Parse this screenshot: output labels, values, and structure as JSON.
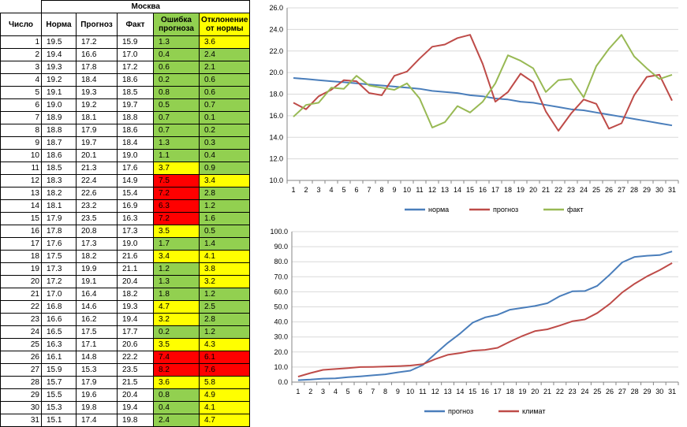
{
  "table": {
    "city": "Москва",
    "headers": {
      "day": "Число",
      "norm": "Норма",
      "forecast": "Прогноз",
      "fact": "Факт",
      "error": "Ошибка прогноза",
      "deviation": "Отклонение от нормы"
    },
    "colors": {
      "green": "#92d050",
      "yellow": "#ffff00",
      "red": "#ff0000"
    },
    "rows": [
      {
        "day": "1",
        "norm": "19.5",
        "forecast": "17.2",
        "fact": "15.9",
        "error": "1.3",
        "error_level": "green",
        "dev": "3.6",
        "dev_level": "yellow"
      },
      {
        "day": "2",
        "norm": "19.4",
        "forecast": "16.6",
        "fact": "17.0",
        "error": "0.4",
        "error_level": "green",
        "dev": "2.4",
        "dev_level": "green"
      },
      {
        "day": "3",
        "norm": "19.3",
        "forecast": "17.8",
        "fact": "17.2",
        "error": "0.6",
        "error_level": "green",
        "dev": "2.1",
        "dev_level": "green"
      },
      {
        "day": "4",
        "norm": "19.2",
        "forecast": "18.4",
        "fact": "18.6",
        "error": "0.2",
        "error_level": "green",
        "dev": "0.6",
        "dev_level": "green"
      },
      {
        "day": "5",
        "norm": "19.1",
        "forecast": "19.3",
        "fact": "18.5",
        "error": "0.8",
        "error_level": "green",
        "dev": "0.6",
        "dev_level": "green"
      },
      {
        "day": "6",
        "norm": "19.0",
        "forecast": "19.2",
        "fact": "19.7",
        "error": "0.5",
        "error_level": "green",
        "dev": "0.7",
        "dev_level": "green"
      },
      {
        "day": "7",
        "norm": "18.9",
        "forecast": "18.1",
        "fact": "18.8",
        "error": "0.7",
        "error_level": "green",
        "dev": "0.1",
        "dev_level": "green"
      },
      {
        "day": "8",
        "norm": "18.8",
        "forecast": "17.9",
        "fact": "18.6",
        "error": "0.7",
        "error_level": "green",
        "dev": "0.2",
        "dev_level": "green"
      },
      {
        "day": "9",
        "norm": "18.7",
        "forecast": "19.7",
        "fact": "18.4",
        "error": "1.3",
        "error_level": "green",
        "dev": "0.3",
        "dev_level": "green"
      },
      {
        "day": "10",
        "norm": "18.6",
        "forecast": "20.1",
        "fact": "19.0",
        "error": "1.1",
        "error_level": "green",
        "dev": "0.4",
        "dev_level": "green"
      },
      {
        "day": "11",
        "norm": "18.5",
        "forecast": "21.3",
        "fact": "17.6",
        "error": "3.7",
        "error_level": "yellow",
        "dev": "0.9",
        "dev_level": "green"
      },
      {
        "day": "12",
        "norm": "18.3",
        "forecast": "22.4",
        "fact": "14.9",
        "error": "7.5",
        "error_level": "red",
        "dev": "3.4",
        "dev_level": "yellow"
      },
      {
        "day": "13",
        "norm": "18.2",
        "forecast": "22.6",
        "fact": "15.4",
        "error": "7.2",
        "error_level": "red",
        "dev": "2.8",
        "dev_level": "green"
      },
      {
        "day": "14",
        "norm": "18.1",
        "forecast": "23.2",
        "fact": "16.9",
        "error": "6.3",
        "error_level": "red",
        "dev": "1.2",
        "dev_level": "green"
      },
      {
        "day": "15",
        "norm": "17.9",
        "forecast": "23.5",
        "fact": "16.3",
        "error": "7.2",
        "error_level": "red",
        "dev": "1.6",
        "dev_level": "green"
      },
      {
        "day": "16",
        "norm": "17.8",
        "forecast": "20.8",
        "fact": "17.3",
        "error": "3.5",
        "error_level": "yellow",
        "dev": "0.5",
        "dev_level": "green"
      },
      {
        "day": "17",
        "norm": "17.6",
        "forecast": "17.3",
        "fact": "19.0",
        "error": "1.7",
        "error_level": "green",
        "dev": "1.4",
        "dev_level": "green"
      },
      {
        "day": "18",
        "norm": "17.5",
        "forecast": "18.2",
        "fact": "21.6",
        "error": "3.4",
        "error_level": "yellow",
        "dev": "4.1",
        "dev_level": "yellow"
      },
      {
        "day": "19",
        "norm": "17.3",
        "forecast": "19.9",
        "fact": "21.1",
        "error": "1.2",
        "error_level": "green",
        "dev": "3.8",
        "dev_level": "yellow"
      },
      {
        "day": "20",
        "norm": "17.2",
        "forecast": "19.1",
        "fact": "20.4",
        "error": "1.3",
        "error_level": "green",
        "dev": "3.2",
        "dev_level": "yellow"
      },
      {
        "day": "21",
        "norm": "17.0",
        "forecast": "16.4",
        "fact": "18.2",
        "error": "1.8",
        "error_level": "green",
        "dev": "1.2",
        "dev_level": "green"
      },
      {
        "day": "22",
        "norm": "16.8",
        "forecast": "14.6",
        "fact": "19.3",
        "error": "4.7",
        "error_level": "yellow",
        "dev": "2.5",
        "dev_level": "green"
      },
      {
        "day": "23",
        "norm": "16.6",
        "forecast": "16.2",
        "fact": "19.4",
        "error": "3.2",
        "error_level": "yellow",
        "dev": "2.8",
        "dev_level": "green"
      },
      {
        "day": "24",
        "norm": "16.5",
        "forecast": "17.5",
        "fact": "17.7",
        "error": "0.2",
        "error_level": "green",
        "dev": "1.2",
        "dev_level": "green"
      },
      {
        "day": "25",
        "norm": "16.3",
        "forecast": "17.1",
        "fact": "20.6",
        "error": "3.5",
        "error_level": "yellow",
        "dev": "4.3",
        "dev_level": "yellow"
      },
      {
        "day": "26",
        "norm": "16.1",
        "forecast": "14.8",
        "fact": "22.2",
        "error": "7.4",
        "error_level": "red",
        "dev": "6.1",
        "dev_level": "red"
      },
      {
        "day": "27",
        "norm": "15.9",
        "forecast": "15.3",
        "fact": "23.5",
        "error": "8.2",
        "error_level": "red",
        "dev": "7.6",
        "dev_level": "red"
      },
      {
        "day": "28",
        "norm": "15.7",
        "forecast": "17.9",
        "fact": "21.5",
        "error": "3.6",
        "error_level": "yellow",
        "dev": "5.8",
        "dev_level": "yellow"
      },
      {
        "day": "29",
        "norm": "15.5",
        "forecast": "19.6",
        "fact": "20.4",
        "error": "0.8",
        "error_level": "green",
        "dev": "4.9",
        "dev_level": "yellow"
      },
      {
        "day": "30",
        "norm": "15.3",
        "forecast": "19.8",
        "fact": "19.4",
        "error": "0.4",
        "error_level": "green",
        "dev": "4.1",
        "dev_level": "yellow"
      },
      {
        "day": "31",
        "norm": "15.1",
        "forecast": "17.4",
        "fact": "19.8",
        "error": "2.4",
        "error_level": "green",
        "dev": "4.7",
        "dev_level": "yellow"
      }
    ]
  },
  "chart_data": [
    {
      "type": "line",
      "title": "",
      "xlabel": "",
      "ylabel": "",
      "x": [
        1,
        2,
        3,
        4,
        5,
        6,
        7,
        8,
        9,
        10,
        11,
        12,
        13,
        14,
        15,
        16,
        17,
        18,
        19,
        20,
        21,
        22,
        23,
        24,
        25,
        26,
        27,
        28,
        29,
        30,
        31
      ],
      "ylim": [
        10.0,
        26.0
      ],
      "yticks": [
        "10.0",
        "12.0",
        "14.0",
        "16.0",
        "18.0",
        "20.0",
        "22.0",
        "24.0",
        "26.0"
      ],
      "grid": true,
      "legend_position": "bottom",
      "series": [
        {
          "name": "норма",
          "color": "#4a7ebb",
          "values": [
            19.5,
            19.4,
            19.3,
            19.2,
            19.1,
            19.0,
            18.9,
            18.8,
            18.7,
            18.6,
            18.5,
            18.3,
            18.2,
            18.1,
            17.9,
            17.8,
            17.6,
            17.5,
            17.3,
            17.2,
            17.0,
            16.8,
            16.6,
            16.5,
            16.3,
            16.1,
            15.9,
            15.7,
            15.5,
            15.3,
            15.1
          ]
        },
        {
          "name": "прогноз",
          "color": "#be4b48",
          "values": [
            17.2,
            16.6,
            17.8,
            18.4,
            19.3,
            19.2,
            18.1,
            17.9,
            19.7,
            20.1,
            21.3,
            22.4,
            22.6,
            23.2,
            23.5,
            20.8,
            17.3,
            18.2,
            19.9,
            19.1,
            16.4,
            14.6,
            16.2,
            17.5,
            17.1,
            14.8,
            15.3,
            17.9,
            19.6,
            19.8,
            17.4
          ]
        },
        {
          "name": "факт",
          "color": "#98b954",
          "values": [
            15.9,
            17.0,
            17.2,
            18.6,
            18.5,
            19.7,
            18.8,
            18.6,
            18.4,
            19.0,
            17.6,
            14.9,
            15.4,
            16.9,
            16.3,
            17.3,
            19.0,
            21.6,
            21.1,
            20.4,
            18.2,
            19.3,
            19.4,
            17.7,
            20.6,
            22.2,
            23.5,
            21.5,
            20.4,
            19.4,
            19.8
          ]
        }
      ]
    },
    {
      "type": "line",
      "title": "",
      "xlabel": "",
      "ylabel": "",
      "x": [
        1,
        2,
        3,
        4,
        5,
        6,
        7,
        8,
        9,
        10,
        11,
        12,
        13,
        14,
        15,
        16,
        17,
        18,
        19,
        20,
        21,
        22,
        23,
        24,
        25,
        26,
        27,
        28,
        29,
        30,
        31
      ],
      "ylim": [
        0.0,
        100.0
      ],
      "yticks": [
        "0.0",
        "10.0",
        "20.0",
        "30.0",
        "40.0",
        "50.0",
        "60.0",
        "70.0",
        "80.0",
        "90.0",
        "100.0"
      ],
      "grid": true,
      "legend_position": "bottom",
      "series": [
        {
          "name": "прогноз",
          "color": "#4a7ebb",
          "values": [
            1.3,
            1.7,
            2.3,
            2.5,
            3.3,
            3.8,
            4.5,
            5.2,
            6.5,
            7.6,
            11.3,
            18.8,
            26.0,
            32.3,
            39.5,
            43.0,
            44.7,
            48.1,
            49.3,
            50.6,
            52.4,
            57.1,
            60.3,
            60.5,
            64.0,
            71.4,
            79.6,
            83.2,
            84.0,
            84.4,
            86.8
          ]
        },
        {
          "name": "климат",
          "color": "#be4b48",
          "values": [
            3.6,
            6.0,
            8.1,
            8.7,
            9.3,
            10.0,
            10.1,
            10.3,
            10.6,
            11.0,
            11.9,
            15.3,
            18.1,
            19.3,
            20.9,
            21.4,
            22.8,
            26.9,
            30.7,
            33.9,
            35.1,
            37.6,
            40.4,
            41.6,
            45.9,
            52.0,
            59.6,
            65.4,
            70.3,
            74.4,
            79.1
          ]
        }
      ]
    }
  ]
}
